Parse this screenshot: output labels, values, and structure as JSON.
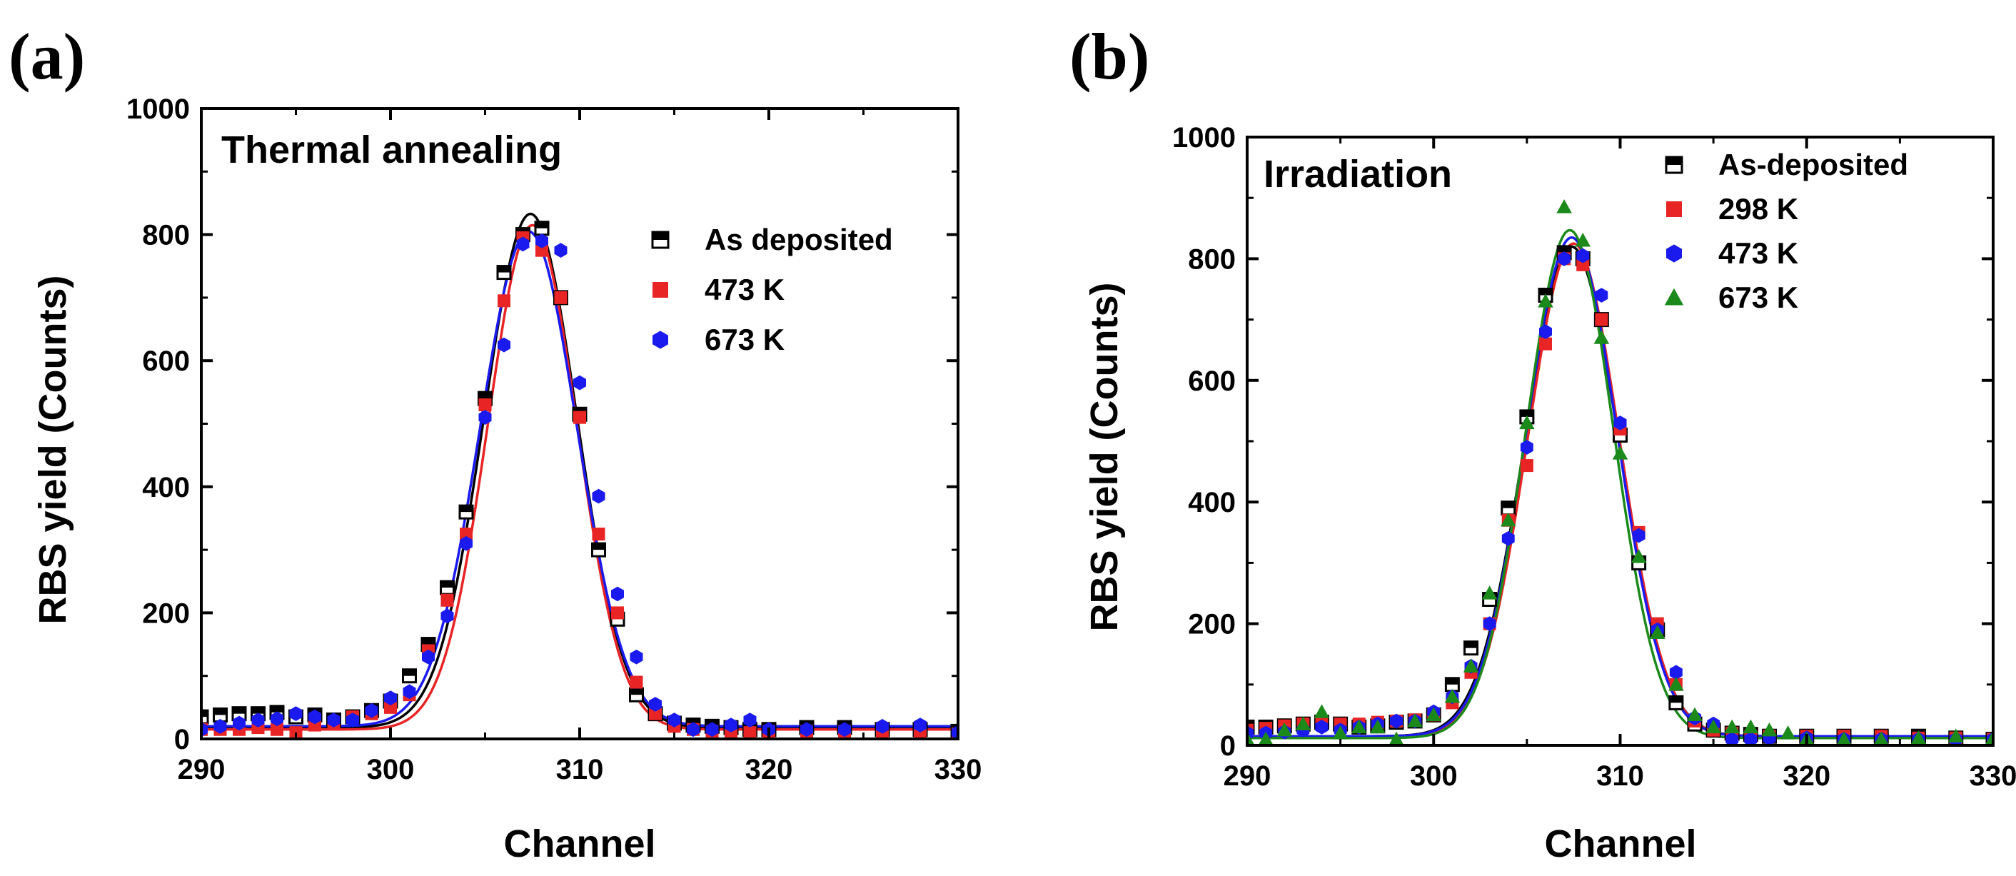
{
  "chart_data": [
    {
      "type": "scatter",
      "panel_label": "(a)",
      "title": "Thermal annealing",
      "xlabel": "Channel",
      "ylabel": "RBS yield (Counts)",
      "xlim": [
        290,
        330
      ],
      "ylim": [
        0,
        1000
      ],
      "xticks": [
        290,
        300,
        310,
        320,
        330
      ],
      "yticks": [
        0,
        200,
        400,
        600,
        800,
        1000
      ],
      "legend_position": "right",
      "fit_curves": [
        {
          "name": "As deposited",
          "color": "#000000",
          "peak": 815,
          "center": 307.4,
          "sigma": 2.45,
          "baseline": 18
        },
        {
          "name": "473 K",
          "color": "#e82424",
          "peak": 800,
          "center": 307.5,
          "sigma": 2.35,
          "baseline": 15
        },
        {
          "name": "673 K",
          "color": "#1a1aee",
          "peak": 785,
          "center": 307.3,
          "sigma": 2.55,
          "baseline": 20
        }
      ],
      "series": [
        {
          "name": "As deposited",
          "marker": "half-square",
          "color": "#000000",
          "x": [
            290,
            291,
            292,
            293,
            294,
            295,
            296,
            297,
            298,
            299,
            300,
            301,
            302,
            303,
            304,
            305,
            306,
            307,
            308,
            309,
            310,
            311,
            312,
            313,
            314,
            315,
            316,
            317,
            318,
            319,
            320,
            322,
            324,
            326,
            328,
            330
          ],
          "y": [
            35,
            38,
            40,
            40,
            42,
            35,
            38,
            30,
            35,
            45,
            60,
            100,
            150,
            240,
            360,
            540,
            740,
            800,
            810,
            700,
            515,
            300,
            190,
            70,
            40,
            25,
            22,
            20,
            18,
            15,
            15,
            18,
            18,
            15,
            15,
            12
          ]
        },
        {
          "name": "473 K",
          "marker": "square",
          "color": "#e82424",
          "x": [
            290,
            291,
            292,
            293,
            294,
            295,
            296,
            297,
            298,
            299,
            300,
            301,
            302,
            303,
            304,
            305,
            306,
            307,
            308,
            309,
            310,
            311,
            312,
            313,
            314,
            315,
            316,
            317,
            318,
            319,
            320,
            322,
            324,
            326,
            328,
            330
          ],
          "y": [
            15,
            15,
            15,
            18,
            15,
            10,
            22,
            25,
            35,
            40,
            50,
            70,
            140,
            220,
            325,
            530,
            695,
            795,
            775,
            700,
            510,
            325,
            200,
            90,
            40,
            20,
            15,
            12,
            12,
            10,
            12,
            12,
            12,
            10,
            10,
            8
          ]
        },
        {
          "name": "673 K",
          "marker": "hexagon",
          "color": "#1a1aee",
          "x": [
            290,
            291,
            292,
            293,
            294,
            295,
            296,
            297,
            298,
            299,
            300,
            301,
            302,
            303,
            304,
            305,
            306,
            307,
            308,
            309,
            310,
            311,
            312,
            313,
            314,
            315,
            316,
            317,
            318,
            319,
            320,
            322,
            324,
            326,
            328,
            330
          ],
          "y": [
            15,
            20,
            25,
            30,
            32,
            40,
            35,
            30,
            30,
            45,
            65,
            75,
            130,
            195,
            310,
            510,
            625,
            785,
            790,
            775,
            565,
            385,
            230,
            130,
            55,
            30,
            15,
            15,
            22,
            30,
            15,
            15,
            15,
            20,
            22,
            10
          ]
        }
      ]
    },
    {
      "type": "scatter",
      "panel_label": "(b)",
      "title": "Irradiation",
      "xlabel": "Channel",
      "ylabel": "RBS yield (Counts)",
      "xlim": [
        290,
        330
      ],
      "ylim": [
        0,
        1000
      ],
      "xticks": [
        290,
        300,
        310,
        320,
        330
      ],
      "yticks": [
        0,
        200,
        400,
        600,
        800,
        1000
      ],
      "legend_position": "top-right",
      "fit_curves": [
        {
          "name": "As-deposited",
          "color": "#000000",
          "peak": 805,
          "center": 307.4,
          "sigma": 2.5,
          "baseline": 15
        },
        {
          "name": "298 K",
          "color": "#e82424",
          "peak": 810,
          "center": 307.5,
          "sigma": 2.45,
          "baseline": 15
        },
        {
          "name": "473 K",
          "color": "#1a1aee",
          "peak": 820,
          "center": 307.4,
          "sigma": 2.45,
          "baseline": 15
        },
        {
          "name": "673 K",
          "color": "#1b8a1b",
          "peak": 835,
          "center": 307.3,
          "sigma": 2.35,
          "baseline": 12
        }
      ],
      "series": [
        {
          "name": "As-deposited",
          "marker": "half-square",
          "color": "#000000",
          "x": [
            290,
            291,
            292,
            293,
            294,
            295,
            296,
            297,
            298,
            299,
            300,
            301,
            302,
            303,
            304,
            305,
            306,
            307,
            308,
            309,
            310,
            311,
            312,
            313,
            314,
            315,
            316,
            317,
            318,
            320,
            322,
            324,
            326,
            328,
            330
          ],
          "y": [
            30,
            30,
            32,
            35,
            38,
            35,
            30,
            32,
            38,
            40,
            50,
            100,
            160,
            240,
            390,
            540,
            740,
            810,
            800,
            700,
            510,
            300,
            190,
            70,
            35,
            25,
            20,
            18,
            15,
            15,
            15,
            15,
            15,
            12,
            10
          ]
        },
        {
          "name": "298 K",
          "marker": "square",
          "color": "#e82424",
          "x": [
            290,
            291,
            292,
            293,
            294,
            295,
            296,
            297,
            298,
            299,
            300,
            301,
            302,
            303,
            304,
            305,
            306,
            307,
            308,
            309,
            310,
            311,
            312,
            313,
            314,
            315,
            316,
            317,
            318,
            320,
            322,
            324,
            326,
            328,
            330
          ],
          "y": [
            25,
            28,
            32,
            35,
            35,
            35,
            35,
            38,
            40,
            42,
            50,
            70,
            120,
            200,
            370,
            460,
            660,
            800,
            790,
            700,
            520,
            350,
            200,
            100,
            40,
            25,
            20,
            15,
            15,
            15,
            15,
            15,
            12,
            12,
            10
          ]
        },
        {
          "name": "473 K",
          "marker": "hexagon",
          "color": "#1a1aee",
          "x": [
            290,
            291,
            292,
            293,
            294,
            295,
            296,
            297,
            298,
            299,
            300,
            301,
            302,
            303,
            304,
            305,
            306,
            307,
            308,
            309,
            310,
            311,
            312,
            313,
            314,
            315,
            316,
            317,
            318,
            320,
            322,
            324,
            326,
            328,
            330
          ],
          "y": [
            20,
            20,
            22,
            25,
            30,
            25,
            30,
            35,
            40,
            40,
            55,
            80,
            130,
            200,
            340,
            490,
            680,
            800,
            805,
            740,
            530,
            345,
            190,
            120,
            45,
            35,
            10,
            10,
            12,
            12,
            10,
            10,
            10,
            10,
            10
          ]
        },
        {
          "name": "673 K",
          "marker": "triangle",
          "color": "#1b8a1b",
          "x": [
            290,
            291,
            292,
            293,
            294,
            295,
            296,
            297,
            298,
            299,
            300,
            301,
            302,
            303,
            304,
            305,
            306,
            307,
            308,
            309,
            310,
            311,
            312,
            313,
            314,
            315,
            316,
            317,
            318,
            319,
            320,
            322,
            324,
            326,
            328,
            330
          ],
          "y": [
            10,
            10,
            25,
            35,
            55,
            20,
            30,
            30,
            10,
            40,
            50,
            80,
            130,
            250,
            370,
            530,
            730,
            885,
            830,
            670,
            480,
            310,
            185,
            100,
            50,
            30,
            30,
            30,
            25,
            20,
            10,
            10,
            10,
            12,
            15,
            12
          ]
        }
      ]
    }
  ]
}
